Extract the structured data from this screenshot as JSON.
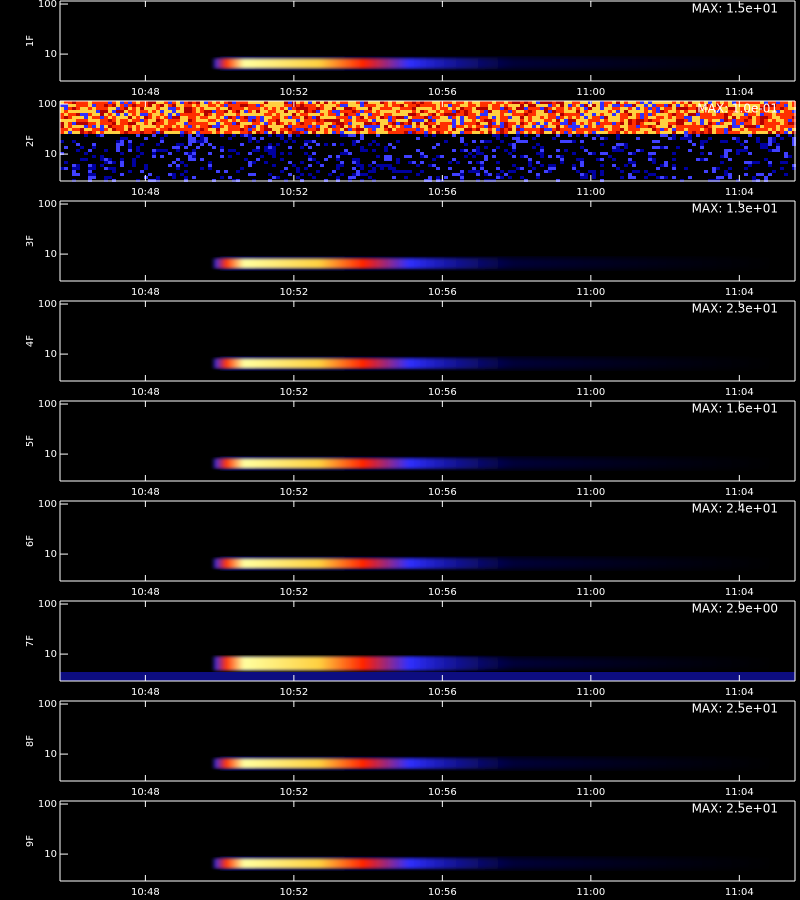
{
  "chart_data": [
    {
      "type": "spectrogram",
      "ylabel": "1F",
      "annotation": "MAX: 1.5e+01",
      "log_y": true,
      "ylim": [
        2.9,
        115
      ],
      "yticks": [
        10,
        100
      ],
      "xlim": [
        645.7,
        665.5
      ],
      "xticks": [
        {
          "value": 648,
          "label": "10:48"
        },
        {
          "value": 652,
          "label": "10:52"
        },
        {
          "value": 656,
          "label": "10:56"
        },
        {
          "value": 660,
          "label": "11:00"
        },
        {
          "value": 664,
          "label": "11:04"
        }
      ]
    },
    {
      "type": "spectrogram",
      "ylabel": "2F",
      "annotation": "MAX: 1.0e-01",
      "log_y": true,
      "ylim": [
        2.9,
        115
      ],
      "yticks": [
        10,
        100
      ],
      "xlim": [
        645.7,
        665.5
      ],
      "xticks": [
        {
          "value": 648,
          "label": "10:48"
        },
        {
          "value": 652,
          "label": "10:52"
        },
        {
          "value": 656,
          "label": "10:56"
        },
        {
          "value": 660,
          "label": "11:00"
        },
        {
          "value": 664,
          "label": "11:04"
        }
      ]
    },
    {
      "type": "spectrogram",
      "ylabel": "3F",
      "annotation": "MAX: 1.3e+01",
      "log_y": true,
      "ylim": [
        2.9,
        115
      ],
      "yticks": [
        10,
        100
      ],
      "xlim": [
        645.7,
        665.5
      ],
      "xticks": [
        {
          "value": 648,
          "label": "10:48"
        },
        {
          "value": 652,
          "label": "10:52"
        },
        {
          "value": 656,
          "label": "10:56"
        },
        {
          "value": 660,
          "label": "11:00"
        },
        {
          "value": 664,
          "label": "11:04"
        }
      ]
    },
    {
      "type": "spectrogram",
      "ylabel": "4F",
      "annotation": "MAX: 2.3e+01",
      "log_y": true,
      "ylim": [
        2.9,
        115
      ],
      "yticks": [
        10,
        100
      ],
      "xlim": [
        645.7,
        665.5
      ],
      "xticks": [
        {
          "value": 648,
          "label": "10:48"
        },
        {
          "value": 652,
          "label": "10:52"
        },
        {
          "value": 656,
          "label": "10:56"
        },
        {
          "value": 660,
          "label": "11:00"
        },
        {
          "value": 664,
          "label": "11:04"
        }
      ]
    },
    {
      "type": "spectrogram",
      "ylabel": "5F",
      "annotation": "MAX: 1.6e+01",
      "log_y": true,
      "ylim": [
        2.9,
        115
      ],
      "yticks": [
        10,
        100
      ],
      "xlim": [
        645.7,
        665.5
      ],
      "xticks": [
        {
          "value": 648,
          "label": "10:48"
        },
        {
          "value": 652,
          "label": "10:52"
        },
        {
          "value": 656,
          "label": "10:56"
        },
        {
          "value": 660,
          "label": "11:00"
        },
        {
          "value": 664,
          "label": "11:04"
        }
      ]
    },
    {
      "type": "spectrogram",
      "ylabel": "6F",
      "annotation": "MAX: 2.4e+01",
      "log_y": true,
      "ylim": [
        2.9,
        115
      ],
      "yticks": [
        10,
        100
      ],
      "xlim": [
        645.7,
        665.5
      ],
      "xticks": [
        {
          "value": 648,
          "label": "10:48"
        },
        {
          "value": 652,
          "label": "10:52"
        },
        {
          "value": 656,
          "label": "10:56"
        },
        {
          "value": 660,
          "label": "11:00"
        },
        {
          "value": 664,
          "label": "11:04"
        }
      ]
    },
    {
      "type": "spectrogram",
      "ylabel": "7F",
      "annotation": "MAX: 2.9e+00",
      "log_y": true,
      "ylim": [
        2.9,
        115
      ],
      "yticks": [
        10,
        100
      ],
      "xlim": [
        645.7,
        665.5
      ],
      "xticks": [
        {
          "value": 648,
          "label": "10:48"
        },
        {
          "value": 652,
          "label": "10:52"
        },
        {
          "value": 656,
          "label": "10:56"
        },
        {
          "value": 660,
          "label": "11:00"
        },
        {
          "value": 664,
          "label": "11:04"
        }
      ]
    },
    {
      "type": "spectrogram",
      "ylabel": "8F",
      "annotation": "MAX: 2.5e+01",
      "log_y": true,
      "ylim": [
        2.9,
        115
      ],
      "yticks": [
        10,
        100
      ],
      "xlim": [
        645.7,
        665.5
      ],
      "xticks": [
        {
          "value": 648,
          "label": "10:48"
        },
        {
          "value": 652,
          "label": "10:52"
        },
        {
          "value": 656,
          "label": "10:56"
        },
        {
          "value": 660,
          "label": "11:00"
        },
        {
          "value": 664,
          "label": "11:04"
        }
      ]
    },
    {
      "type": "spectrogram",
      "ylabel": "9F",
      "annotation": "MAX: 2.5e+01",
      "log_y": true,
      "ylim": [
        2.9,
        115
      ],
      "yticks": [
        10,
        100
      ],
      "xlim": [
        645.7,
        665.5
      ],
      "xticks": [
        {
          "value": 648,
          "label": "10:48"
        },
        {
          "value": 652,
          "label": "10:52"
        },
        {
          "value": 656,
          "label": "10:56"
        },
        {
          "value": 660,
          "label": "11:00"
        },
        {
          "value": 664,
          "label": "11:04"
        }
      ]
    }
  ]
}
